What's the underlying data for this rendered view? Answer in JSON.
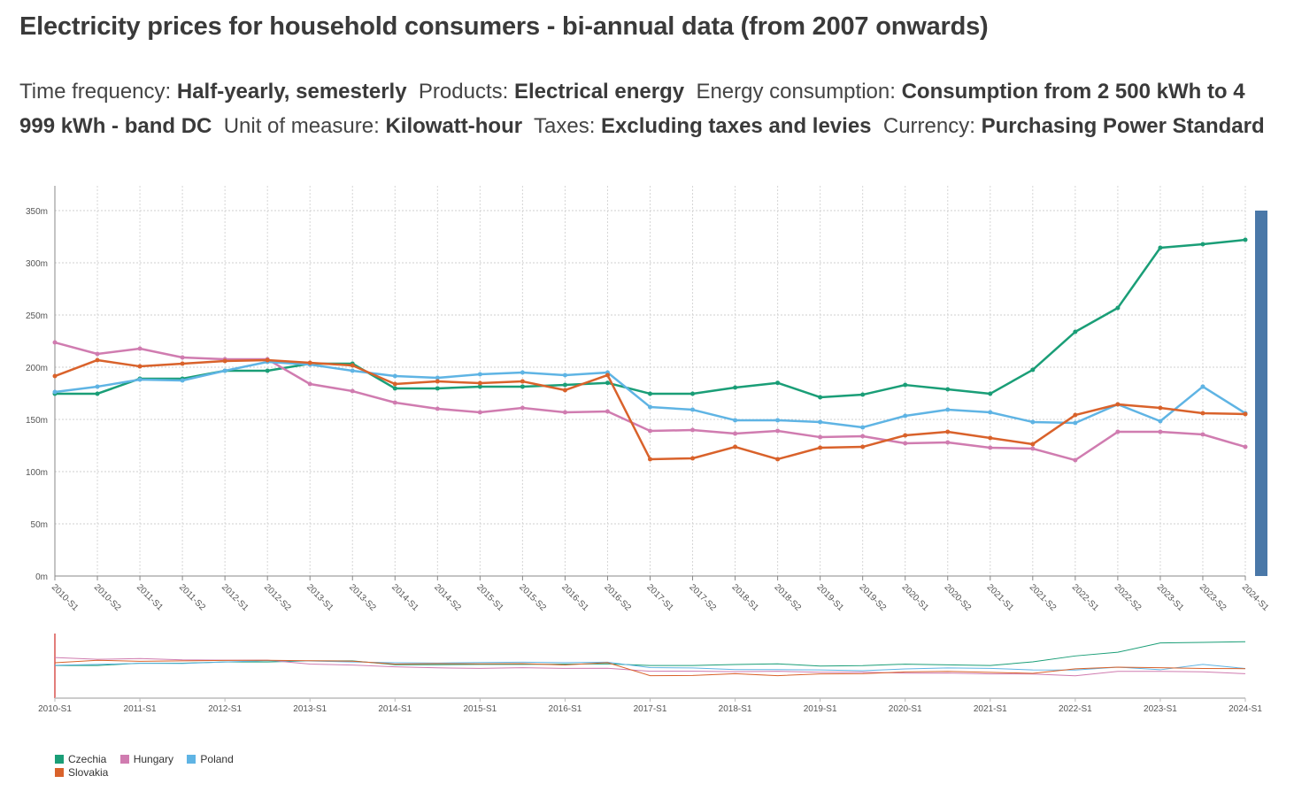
{
  "header": {
    "title": "Electricity prices for household consumers - bi-annual data (from 2007 onwards)"
  },
  "filters": [
    {
      "label": "Time frequency:",
      "value": "Half-yearly, semesterly"
    },
    {
      "label": "Products:",
      "value": "Electrical energy"
    },
    {
      "label": "Energy consumption:",
      "value": "Consumption from 2 500 kWh to 4 999 kWh - band DC"
    },
    {
      "label": "Unit of measure:",
      "value": "Kilowatt-hour"
    },
    {
      "label": "Taxes:",
      "value": "Excluding taxes and levies"
    },
    {
      "label": "Currency:",
      "value": "Purchasing Power Standard"
    }
  ],
  "chart_data": {
    "type": "line",
    "title": "Electricity prices for household consumers - bi-annual data (from 2007 onwards)",
    "xlabel": "",
    "ylabel": "",
    "ylim": [
      0,
      350
    ],
    "yticks": [
      "0m",
      "50m",
      "100m",
      "150m",
      "200m",
      "250m",
      "300m",
      "350m"
    ],
    "ytick_values": [
      0,
      50,
      100,
      150,
      200,
      250,
      300,
      350
    ],
    "grid": true,
    "legend_position": "bottom-left",
    "x": [
      "2010-S1",
      "2010-S2",
      "2011-S1",
      "2011-S2",
      "2012-S1",
      "2012-S2",
      "2013-S1",
      "2013-S2",
      "2014-S1",
      "2014-S2",
      "2015-S1",
      "2015-S2",
      "2016-S1",
      "2016-S2",
      "2017-S1",
      "2017-S2",
      "2018-S1",
      "2018-S2",
      "2019-S1",
      "2019-S2",
      "2020-S1",
      "2020-S2",
      "2021-S1",
      "2021-S2",
      "2022-S1",
      "2022-S2",
      "2023-S1",
      "2023-S2",
      "2024-S1"
    ],
    "navigator_ticks": [
      "2010-S1",
      "2011-S1",
      "2012-S1",
      "2013-S1",
      "2014-S1",
      "2015-S1",
      "2016-S1",
      "2017-S1",
      "2018-S1",
      "2019-S1",
      "2020-S1",
      "2021-S1",
      "2022-S1",
      "2023-S1",
      "2024-S1"
    ],
    "series": [
      {
        "name": "Czechia",
        "color": "#1a9e77",
        "values": [
          174.6,
          174.6,
          189,
          189,
          196.6,
          196.6,
          203.4,
          203.4,
          179.7,
          179.7,
          181.4,
          181.4,
          183,
          185,
          174.6,
          174.6,
          180.5,
          185,
          171.2,
          173.7,
          183,
          178.8,
          174.6,
          197.5,
          233.9,
          256.8,
          314.4,
          317.8,
          322
        ]
      },
      {
        "name": "Hungary",
        "color": "#d07cb0",
        "values": [
          223.7,
          212.7,
          217.8,
          209.3,
          207.6,
          207.6,
          183.9,
          177.1,
          166.1,
          160.2,
          156.8,
          161,
          156.8,
          157.6,
          139,
          139.8,
          136.4,
          139,
          133,
          133.9,
          127.1,
          128,
          122.9,
          122,
          111,
          138.1,
          138.1,
          135.6,
          123.7
        ]
      },
      {
        "name": "Poland",
        "color": "#5fb4e4",
        "values": [
          176.3,
          181.4,
          188.1,
          187.3,
          196.6,
          205.1,
          202.5,
          196.6,
          191.5,
          189.8,
          193.2,
          194.9,
          192.4,
          194.9,
          161.9,
          159.3,
          149.2,
          149.2,
          147.5,
          142.4,
          153.4,
          159.3,
          156.8,
          147.5,
          146.6,
          164.4,
          148.3,
          181.4,
          155.9
        ]
      },
      {
        "name": "Slovakia",
        "color": "#d9622b",
        "values": [
          191.5,
          206.8,
          200.8,
          203.4,
          205.9,
          206.8,
          204.2,
          201.7,
          183.9,
          186.4,
          184.7,
          186.4,
          178,
          192.4,
          111.9,
          112.7,
          123.7,
          111.9,
          122.9,
          123.7,
          134.7,
          138.1,
          132.2,
          126.3,
          154.2,
          164.4,
          161,
          155.9,
          155.1
        ]
      }
    ]
  },
  "scrollbar": {
    "color": "#4a78a8"
  }
}
